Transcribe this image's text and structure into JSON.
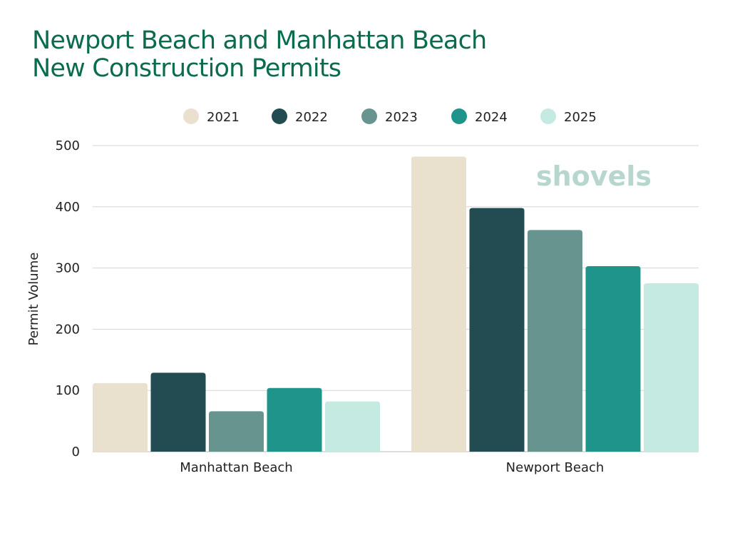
{
  "chart_data": {
    "type": "bar",
    "title": [
      "Newport Beach and Manhattan Beach",
      "New Construction Permits"
    ],
    "xlabel": "",
    "ylabel": "Permit Volume",
    "ylim": [
      0,
      500
    ],
    "yticks": [
      0,
      100,
      200,
      300,
      400,
      500
    ],
    "grid": true,
    "legend_position": "top",
    "categories": [
      "Manhattan Beach",
      "Newport Beach"
    ],
    "series": [
      {
        "name": "2021",
        "color": "#e9e1ce",
        "values": [
          112,
          482
        ]
      },
      {
        "name": "2022",
        "color": "#234c52",
        "values": [
          129,
          398
        ]
      },
      {
        "name": "2023",
        "color": "#67948f",
        "values": [
          66,
          362
        ]
      },
      {
        "name": "2024",
        "color": "#1e948b",
        "values": [
          104,
          303
        ]
      },
      {
        "name": "2025",
        "color": "#c4eae1",
        "values": [
          82,
          275
        ]
      }
    ],
    "watermark": "shovels"
  }
}
